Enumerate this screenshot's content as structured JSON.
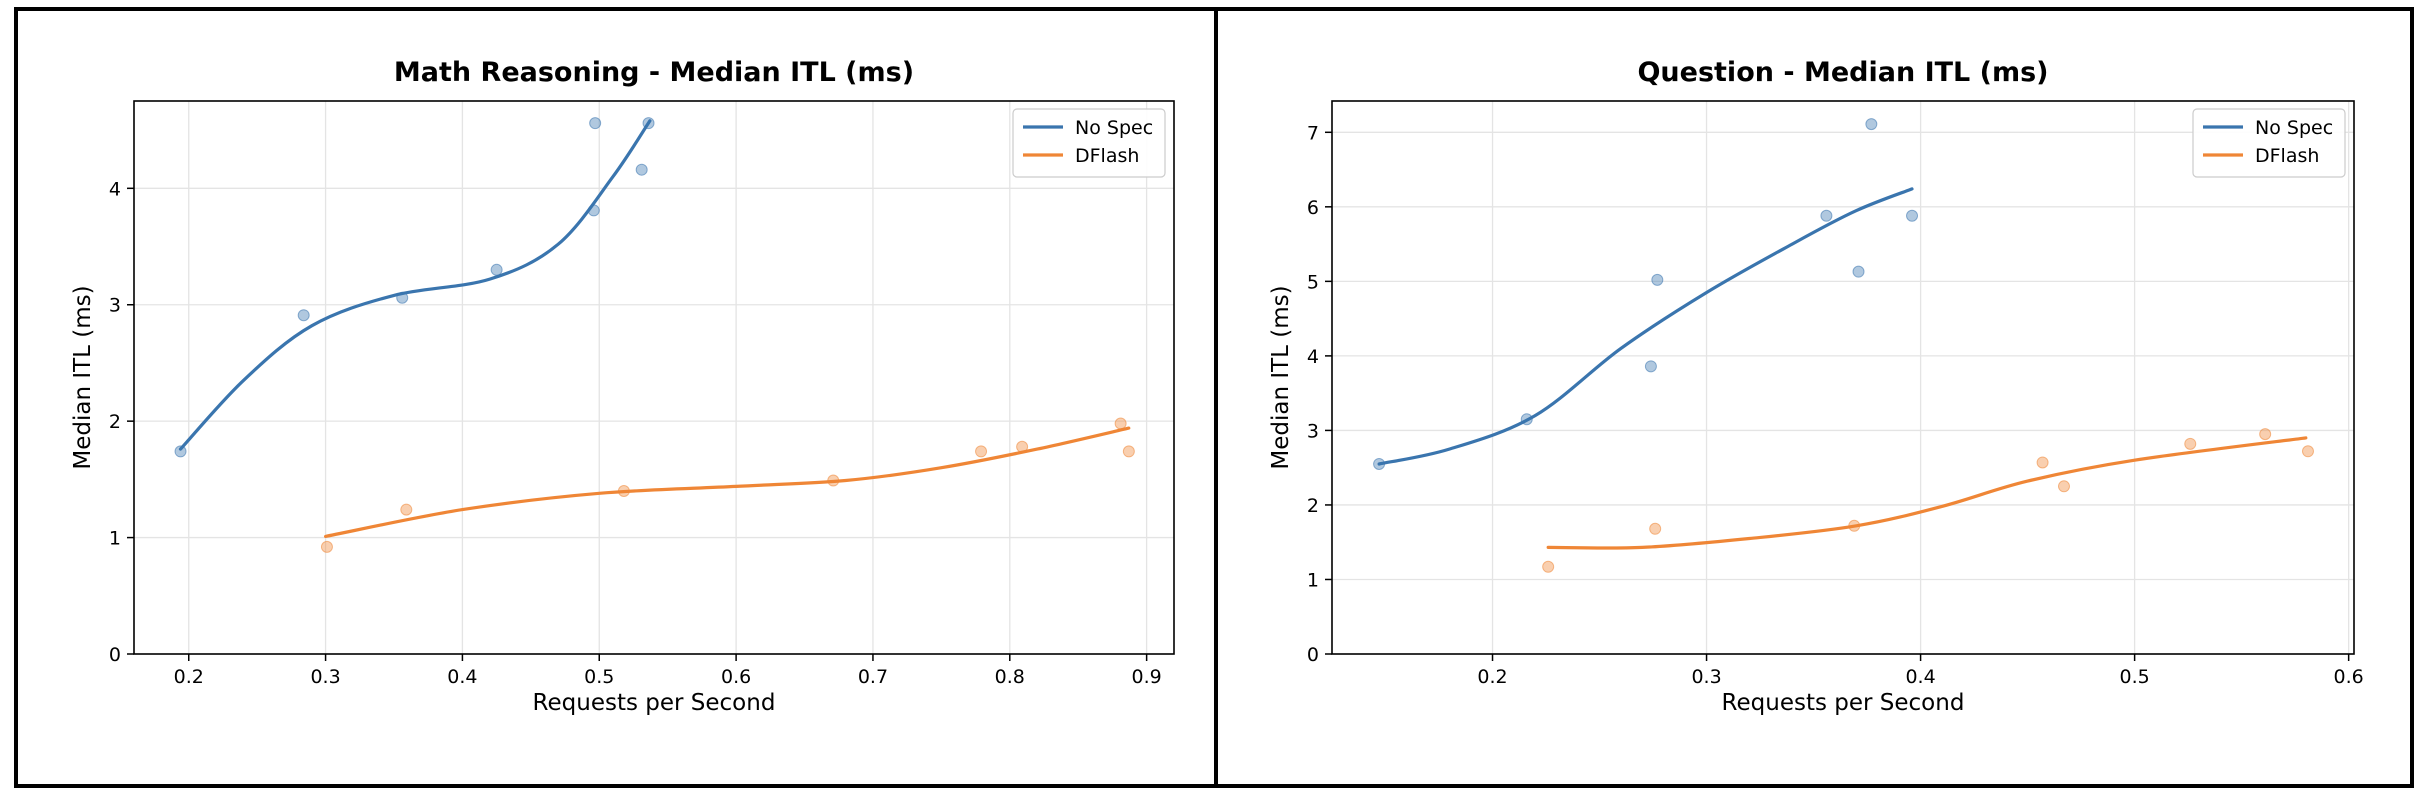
{
  "chart_data": [
    {
      "type": "line",
      "title": "Math Reasoning - Median ITL (ms)",
      "xlabel": "Requests per Second",
      "ylabel": "Median ITL (ms)",
      "xlim": [
        0.16,
        0.92
      ],
      "ylim": [
        0,
        4.75
      ],
      "xticks": [
        0.2,
        0.3,
        0.4,
        0.5,
        0.6,
        0.7,
        0.8,
        0.9
      ],
      "yticks": [
        0,
        1,
        2,
        3,
        4
      ],
      "xtick_labels": [
        "0.2",
        "0.3",
        "0.4",
        "0.5",
        "0.6",
        "0.7",
        "0.8",
        "0.9"
      ],
      "ytick_labels": [
        "0",
        "1",
        "2",
        "3",
        "4"
      ],
      "grid": true,
      "legend_position": "top-right",
      "series": [
        {
          "name": "No Spec",
          "color": "#3a75ae",
          "points": [
            [
              0.194,
              1.74
            ],
            [
              0.284,
              2.91
            ],
            [
              0.356,
              3.06
            ],
            [
              0.425,
              3.3
            ],
            [
              0.496,
              3.81
            ],
            [
              0.497,
              4.56
            ],
            [
              0.531,
              4.16
            ],
            [
              0.536,
              4.56
            ]
          ],
          "curve": [
            [
              0.194,
              1.76
            ],
            [
              0.24,
              2.35
            ],
            [
              0.29,
              2.82
            ],
            [
              0.35,
              3.08
            ],
            [
              0.42,
              3.22
            ],
            [
              0.47,
              3.52
            ],
            [
              0.51,
              4.1
            ],
            [
              0.537,
              4.58
            ]
          ]
        },
        {
          "name": "DFlash",
          "color": "#ef8636",
          "points": [
            [
              0.301,
              0.92
            ],
            [
              0.359,
              1.24
            ],
            [
              0.518,
              1.4
            ],
            [
              0.671,
              1.49
            ],
            [
              0.779,
              1.74
            ],
            [
              0.809,
              1.78
            ],
            [
              0.881,
              1.98
            ],
            [
              0.887,
              1.74
            ]
          ],
          "curve": [
            [
              0.3,
              1.01
            ],
            [
              0.4,
              1.24
            ],
            [
              0.5,
              1.38
            ],
            [
              0.6,
              1.44
            ],
            [
              0.68,
              1.49
            ],
            [
              0.75,
              1.6
            ],
            [
              0.82,
              1.76
            ],
            [
              0.887,
              1.94
            ]
          ]
        }
      ]
    },
    {
      "type": "line",
      "title": "Question - Median ITL (ms)",
      "xlabel": "Requests per Second",
      "ylabel": "Median ITL (ms)",
      "xlim": [
        0.125,
        0.6025
      ],
      "ylim": [
        0,
        7.42
      ],
      "xticks": [
        0.2,
        0.3,
        0.4,
        0.5,
        0.6
      ],
      "yticks": [
        0,
        1,
        2,
        3,
        4,
        5,
        6,
        7
      ],
      "xtick_labels": [
        "0.2",
        "0.3",
        "0.4",
        "0.5",
        "0.6"
      ],
      "ytick_labels": [
        "0",
        "1",
        "2",
        "3",
        "4",
        "5",
        "6",
        "7"
      ],
      "grid": true,
      "legend_position": "top-right",
      "series": [
        {
          "name": "No Spec",
          "color": "#3a75ae",
          "points": [
            [
              0.147,
              2.55
            ],
            [
              0.216,
              3.15
            ],
            [
              0.274,
              3.86
            ],
            [
              0.277,
              5.02
            ],
            [
              0.356,
              5.88
            ],
            [
              0.371,
              5.13
            ],
            [
              0.377,
              7.11
            ],
            [
              0.396,
              5.88
            ]
          ],
          "curve": [
            [
              0.147,
              2.55
            ],
            [
              0.18,
              2.75
            ],
            [
              0.22,
              3.2
            ],
            [
              0.26,
              4.1
            ],
            [
              0.3,
              4.85
            ],
            [
              0.34,
              5.5
            ],
            [
              0.37,
              5.95
            ],
            [
              0.396,
              6.24
            ]
          ]
        },
        {
          "name": "DFlash",
          "color": "#ef8636",
          "points": [
            [
              0.226,
              1.17
            ],
            [
              0.276,
              1.68
            ],
            [
              0.369,
              1.72
            ],
            [
              0.457,
              2.57
            ],
            [
              0.467,
              2.25
            ],
            [
              0.526,
              2.82
            ],
            [
              0.561,
              2.95
            ],
            [
              0.581,
              2.72
            ]
          ],
          "curve": [
            [
              0.226,
              1.43
            ],
            [
              0.27,
              1.43
            ],
            [
              0.32,
              1.55
            ],
            [
              0.37,
              1.72
            ],
            [
              0.41,
              1.98
            ],
            [
              0.45,
              2.32
            ],
            [
              0.5,
              2.6
            ],
            [
              0.58,
              2.9
            ]
          ]
        }
      ]
    }
  ]
}
